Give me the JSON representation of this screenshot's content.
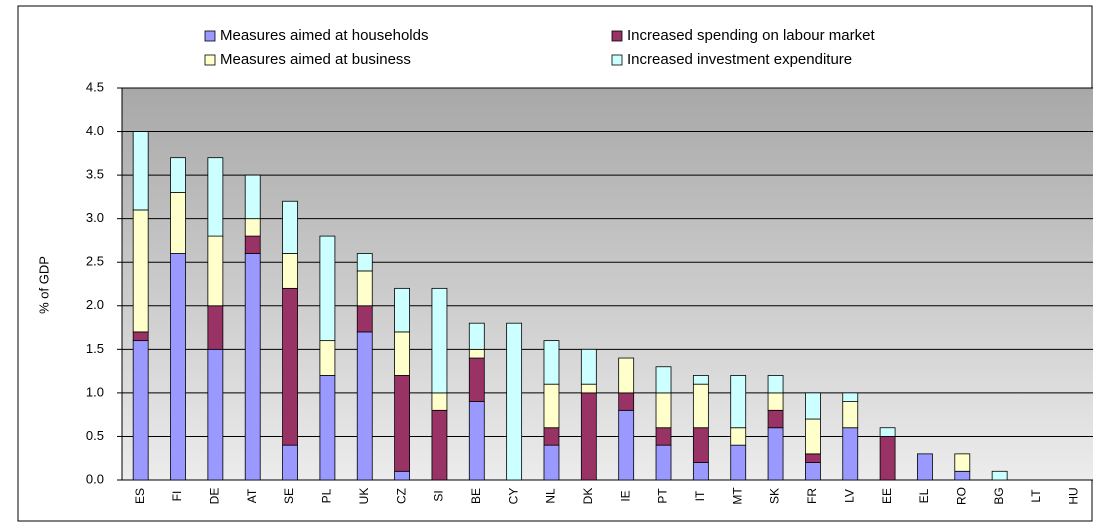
{
  "chart_data": {
    "type": "stacked_bar",
    "y_label": "% of GDP",
    "categories": [
      "ES",
      "FI",
      "DE",
      "AT",
      "SE",
      "PL",
      "UK",
      "CZ",
      "SI",
      "BE",
      "CY",
      "NL",
      "DK",
      "IE",
      "PT",
      "IT",
      "MT",
      "SK",
      "FR",
      "LV",
      "EE",
      "EL",
      "RO",
      "BG",
      "LT",
      "HU"
    ],
    "series": [
      {
        "name": "Measures aimed at households",
        "color": "#9999ff",
        "values": [
          1.6,
          2.6,
          1.5,
          2.6,
          0.4,
          1.2,
          1.7,
          0.1,
          0,
          0.9,
          0,
          0.4,
          0,
          0.8,
          0.4,
          0.2,
          0.4,
          0.6,
          0.2,
          0.6,
          0,
          0.3,
          0.1,
          0,
          0,
          0
        ]
      },
      {
        "name": "Increased spending on labour market",
        "color": "#993366",
        "values": [
          0.1,
          0,
          0.5,
          0.2,
          1.8,
          0,
          0.3,
          1.1,
          0.8,
          0.5,
          0,
          0.2,
          1.0,
          0.2,
          0.2,
          0.4,
          0,
          0.2,
          0.1,
          0,
          0.5,
          0,
          0,
          0,
          0,
          0
        ]
      },
      {
        "name": "Measures aimed at business",
        "color": "#ffffcc",
        "values": [
          1.4,
          0.7,
          0.8,
          0.2,
          0.4,
          0.4,
          0.4,
          0.5,
          0.2,
          0.1,
          0,
          0.5,
          0.1,
          0.4,
          0.4,
          0.5,
          0.2,
          0.2,
          0.4,
          0.3,
          0,
          0,
          0.2,
          0,
          0,
          0
        ]
      },
      {
        "name": "Increased investment expenditure",
        "color": "#ccffff",
        "values": [
          0.9,
          0.4,
          0.9,
          0.5,
          0.6,
          1.2,
          0.2,
          0.5,
          1.2,
          0.3,
          1.8,
          0.5,
          0.4,
          0,
          0.3,
          0.1,
          0.6,
          0.2,
          0.3,
          0.1,
          0.1,
          0,
          0,
          0.1,
          0,
          0
        ]
      }
    ],
    "ylim": [
      0,
      4.5
    ],
    "yticks": [
      {
        "value": 0,
        "label": "0.0"
      },
      {
        "value": 0.5,
        "label": "0.5"
      },
      {
        "value": 1,
        "label": "1.0"
      },
      {
        "value": 1.5,
        "label": "1.5"
      },
      {
        "value": 2,
        "label": "2.0"
      },
      {
        "value": 2.5,
        "label": "2.5"
      },
      {
        "value": 3,
        "label": "3.0"
      },
      {
        "value": 3.5,
        "label": "3.5"
      },
      {
        "value": 4,
        "label": "4.0"
      },
      {
        "value": 4.5,
        "label": "4.5"
      }
    ],
    "grid": true
  }
}
